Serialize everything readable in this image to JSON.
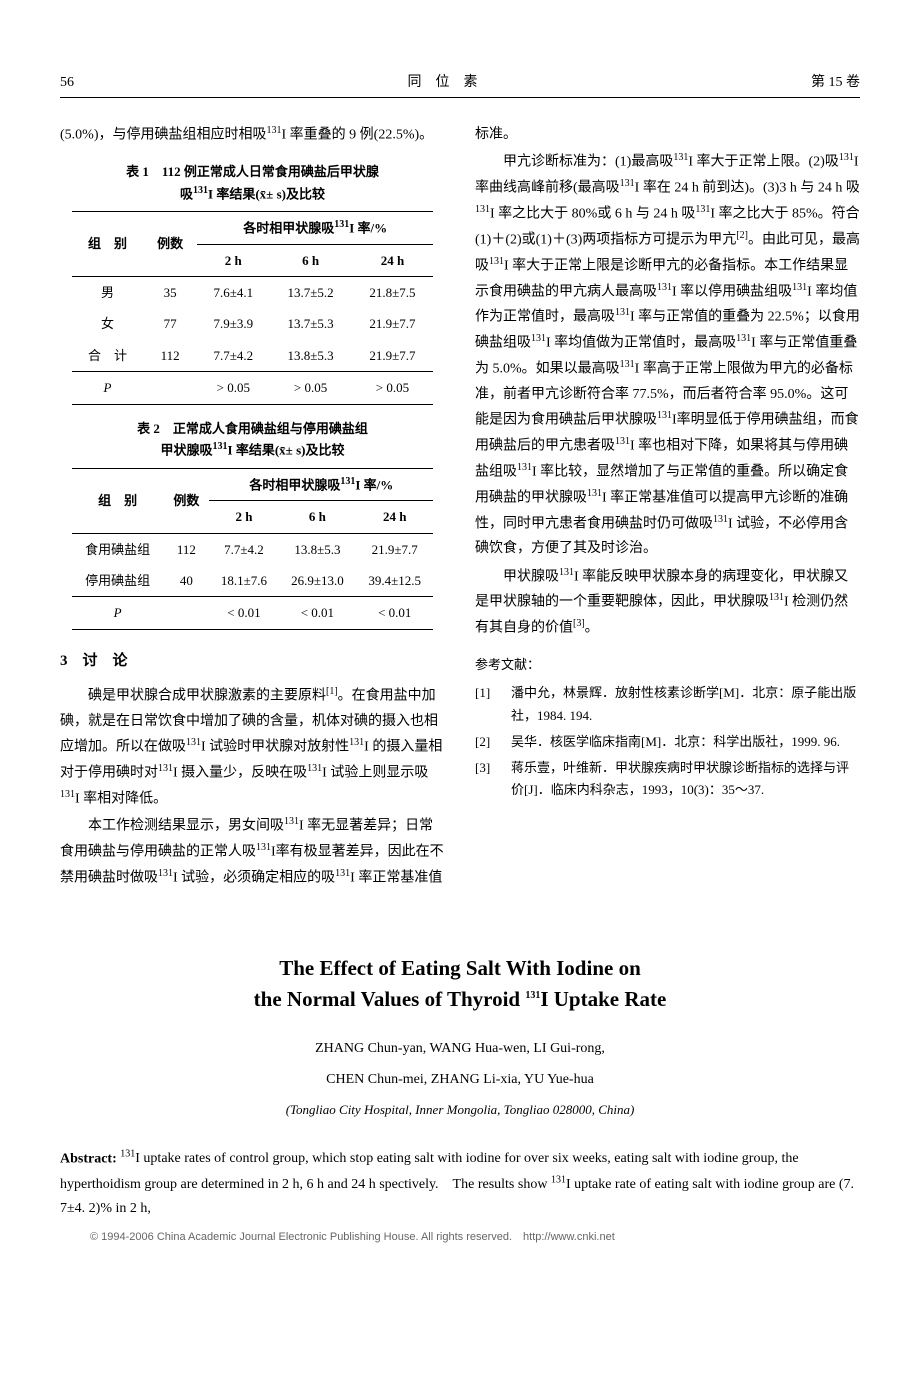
{
  "header": {
    "page": "56",
    "center": "同　位　素",
    "right": "第 15 卷"
  },
  "leftCol": {
    "para_top": "(5.0%)，与停用碘盐组相应时相吸<sup>131</sup>I 率重叠的 9 例(22.5%)。",
    "table1": {
      "caption_line1": "表 1　112 例正常成人日常食用碘盐后甲状腺",
      "caption_line2": "吸<sup>131</sup>I 率结果(x̄± s)及比较",
      "header_group_col": "组　别",
      "header_n": "例数",
      "header_rate": "各时相甲状腺吸<sup>131</sup>I 率/%",
      "subheaders": [
        "2 h",
        "6 h",
        "24 h"
      ],
      "rows": [
        {
          "group": "男",
          "n": "35",
          "h2": "7.6±4.1",
          "h6": "13.7±5.2",
          "h24": "21.8±7.5"
        },
        {
          "group": "女",
          "n": "77",
          "h2": "7.9±3.9",
          "h6": "13.7±5.3",
          "h24": "21.9±7.7"
        },
        {
          "group": "合　计",
          "n": "112",
          "h2": "7.7±4.2",
          "h6": "13.8±5.3",
          "h24": "21.9±7.7"
        },
        {
          "group": "P",
          "n": "",
          "h2": "> 0.05",
          "h6": "> 0.05",
          "h24": "> 0.05"
        }
      ]
    },
    "table2": {
      "caption_line1": "表 2　正常成人食用碘盐组与停用碘盐组",
      "caption_line2": "甲状腺吸<sup>131</sup>I 率结果(x̄± s)及比较",
      "header_group_col": "组　别",
      "header_n": "例数",
      "header_rate": "各时相甲状腺吸<sup>131</sup>I 率/%",
      "subheaders": [
        "2 h",
        "6 h",
        "24 h"
      ],
      "rows": [
        {
          "group": "食用碘盐组",
          "n": "112",
          "h2": "7.7±4.2",
          "h6": "13.8±5.3",
          "h24": "21.9±7.7"
        },
        {
          "group": "停用碘盐组",
          "n": "40",
          "h2": "18.1±7.6",
          "h6": "26.9±13.0",
          "h24": "39.4±12.5"
        },
        {
          "group": "P",
          "n": "",
          "h2": "< 0.01",
          "h6": "< 0.01",
          "h24": "< 0.01"
        }
      ]
    },
    "section3_title": "3　讨　论",
    "para1": "碘是甲状腺合成甲状腺激素的主要原料<sup>[1]</sup>。在食用盐中加碘，就是在日常饮食中增加了碘的含量，机体对碘的摄入也相应增加。所以在做吸<sup>131</sup>I 试验时甲状腺对放射性<sup>131</sup>I 的摄入量相对于停用碘时对<sup>131</sup>I 摄入量少，反映在吸<sup>131</sup>I 试验上则显示吸<sup>131</sup>I 率相对降低。",
    "para2": "本工作检测结果显示，男女间吸<sup>131</sup>I 率无显著差异；日常食用碘盐与停用碘盐的正常人吸<sup>131</sup>I率有极显著差异，因此在不禁用碘盐时做吸<sup>131</sup>I 试验，必须确定相应的吸<sup>131</sup>I 率正常基准值"
  },
  "rightCol": {
    "para0": "标准。",
    "para1": "甲亢诊断标准为：(1)最高吸<sup>131</sup>I 率大于正常上限。(2)吸<sup>131</sup>I 率曲线高峰前移(最高吸<sup>131</sup>I 率在 24 h 前到达)。(3)3 h 与 24 h 吸<sup>131</sup>I 率之比大于 80%或 6 h 与 24 h 吸<sup>131</sup>I 率之比大于 85%。符合(1)＋(2)或(1)＋(3)两项指标方可提示为甲亢<sup>[2]</sup>。由此可见，最高吸<sup>131</sup>I 率大于正常上限是诊断甲亢的必备指标。本工作结果显示食用碘盐的甲亢病人最高吸<sup>131</sup>I 率以停用碘盐组吸<sup>131</sup>I 率均值作为正常值时，最高吸<sup>131</sup>I 率与正常值的重叠为 22.5%；以食用碘盐组吸<sup>131</sup>I 率均值做为正常值时，最高吸<sup>131</sup>I 率与正常值重叠为 5.0%。如果以最高吸<sup>131</sup>I 率高于正常上限做为甲亢的必备标准，前者甲亢诊断符合率 77.5%，而后者符合率 95.0%。这可能是因为食用碘盐后甲状腺吸<sup>131</sup>I率明显低于停用碘盐组，而食用碘盐后的甲亢患者吸<sup>131</sup>I 率也相对下降，如果将其与停用碘盐组吸<sup>131</sup>I 率比较，显然增加了与正常值的重叠。所以确定食用碘盐的甲状腺吸<sup>131</sup>I 率正常基准值可以提高甲亢诊断的准确性，同时甲亢患者食用碘盐时仍可做吸<sup>131</sup>I 试验，不必停用含碘饮食，方便了其及时诊治。",
    "para2": "甲状腺吸<sup>131</sup>I 率能反映甲状腺本身的病理变化，甲状腺又是甲状腺轴的一个重要靶腺体，因此，甲状腺吸<sup>131</sup>I 检测仍然有其自身的价值<sup>[3]</sup>。",
    "refs_title": "参考文献：",
    "refs": [
      {
        "num": "[1]",
        "body": "潘中允，林景辉．放射性核素诊断学[M]．北京：原子能出版社，1984. 194."
      },
      {
        "num": "[2]",
        "body": "吴华．核医学临床指南[M]．北京：科学出版社，1999. 96."
      },
      {
        "num": "[3]",
        "body": "蒋乐壹，叶维新．甲状腺疾病时甲状腺诊断指标的选择与评价[J]．临床内科杂志，1993，10(3)：35～37."
      }
    ]
  },
  "english": {
    "title_line1": "The Effect of Eating Salt With Iodine on",
    "title_line2": "the Normal Values of Thyroid <sup>131</sup>I Uptake Rate",
    "authors_line1": "ZHANG Chun-yan, WANG Hua-wen, LI Gui-rong,",
    "authors_line2": "CHEN Chun-mei, ZHANG Li-xia, YU Yue-hua",
    "affil": "(Tongliao City Hospital, Inner Mongolia, Tongliao 028000, China)",
    "abstract_label": "Abstract:",
    "abstract_body": " <sup>131</sup>I uptake rates of control group, which stop eating salt with iodine for over six weeks, eating salt with iodine group, the hyperthoidism group are determined in 2 h, 6 h and 24 h spectively.　The results show <sup>131</sup>I uptake rate of eating salt with iodine group are (7. 7±4. 2)% in 2 h,"
  },
  "footer": "© 1994-2006 China Academic Journal Electronic Publishing House. All rights reserved.　http://www.cnki.net"
}
